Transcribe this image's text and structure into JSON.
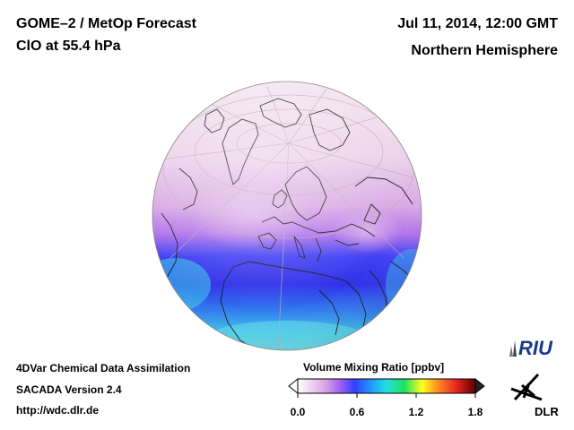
{
  "header": {
    "title_line1": "GOME–2 / MetOp Forecast",
    "title_line2": "ClO at 55.4 hPa",
    "date": "Jul 11, 2014, 12:00 GMT",
    "region": "Northern Hemisphere"
  },
  "footer": {
    "method": "4DVar Chemical Data Assimilation",
    "version": "SACADA Version 2.4",
    "url": "http://wdc.dlr.de"
  },
  "colorbar": {
    "title": "Volume Mixing Ratio [ppbv]",
    "ticks": [
      "0.0",
      "0.6",
      "1.2",
      "1.8"
    ],
    "range": [
      0.0,
      1.8
    ],
    "colors": [
      "#ffffff",
      "#f0d0f0",
      "#d8a0e8",
      "#a060f0",
      "#3040ff",
      "#20a0ff",
      "#20e0e0",
      "#20e060",
      "#ffff20",
      "#ff8020",
      "#e02020",
      "#600000"
    ]
  },
  "logos": {
    "riu": "RIU",
    "dlr": "DLR"
  },
  "icons": {
    "riu": "riu-logo-icon",
    "dlr": "dlr-logo-icon"
  }
}
